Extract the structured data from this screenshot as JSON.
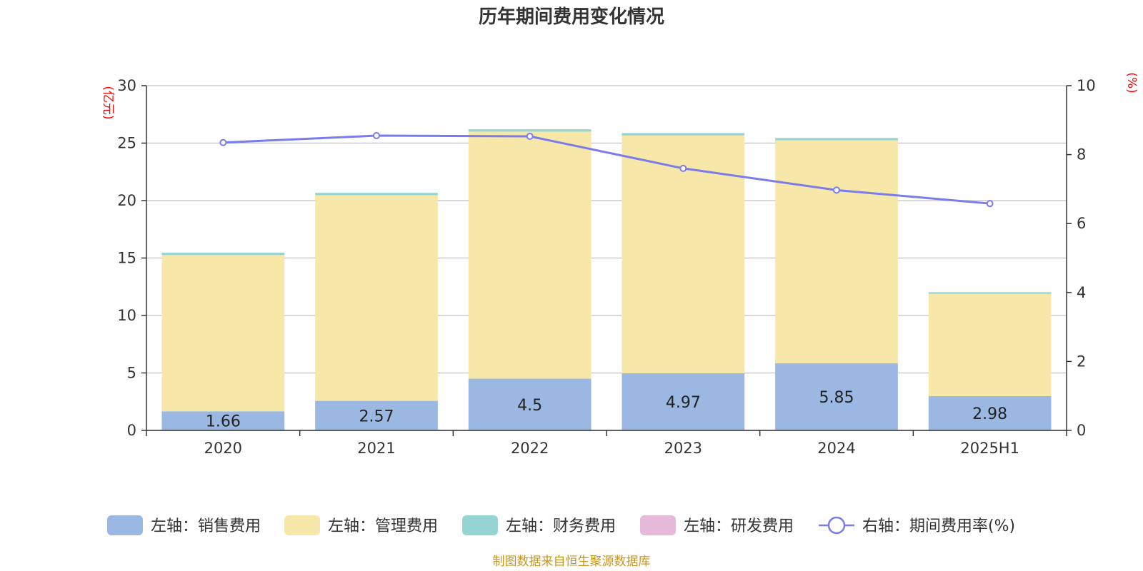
{
  "chart_data": {
    "type": "bar",
    "title": "历年期间费用变化情况",
    "categories": [
      "2020",
      "2021",
      "2022",
      "2023",
      "2024",
      "2025H1"
    ],
    "left_axis": {
      "unit": "(亿元)",
      "ylim": [
        0,
        30
      ],
      "ticks": [
        "0",
        "5",
        "10",
        "15",
        "20",
        "25",
        "30"
      ]
    },
    "right_axis": {
      "unit": "(%)",
      "ylim": [
        0,
        10
      ],
      "ticks": [
        "0",
        "2",
        "4",
        "6",
        "8",
        "10"
      ]
    },
    "series": [
      {
        "name": "左轴：销售费用",
        "type": "bar",
        "stack": true,
        "axis": "left",
        "color": "#9bb8e3",
        "values": [
          1.66,
          2.57,
          4.5,
          4.97,
          5.85,
          2.98
        ],
        "labels": [
          "1.66",
          "2.57",
          "4.5",
          "4.97",
          "5.85",
          "2.98"
        ]
      },
      {
        "name": "左轴：管理费用",
        "type": "bar",
        "stack": true,
        "axis": "left",
        "color": "#f7e7a9",
        "values": [
          13.6,
          17.9,
          21.5,
          20.7,
          19.4,
          8.9
        ]
      },
      {
        "name": "左轴：财务费用",
        "type": "bar",
        "stack": true,
        "axis": "left",
        "color": "#96d4d4",
        "values": [
          0.2,
          0.2,
          0.2,
          0.2,
          0.2,
          0.15
        ]
      },
      {
        "name": "左轴：研发费用",
        "type": "bar",
        "stack": true,
        "axis": "left",
        "color": "#e6b8d9",
        "values": [
          0,
          0,
          0,
          0,
          0,
          0
        ]
      },
      {
        "name": "右轴：期间费用率(%)",
        "type": "line",
        "axis": "right",
        "color": "#7b7cec",
        "values": [
          8.35,
          8.55,
          8.53,
          7.6,
          6.97,
          6.58
        ]
      }
    ],
    "grid": true,
    "legend_position": "bottom"
  },
  "source": "制图数据来自恒生聚源数据库"
}
